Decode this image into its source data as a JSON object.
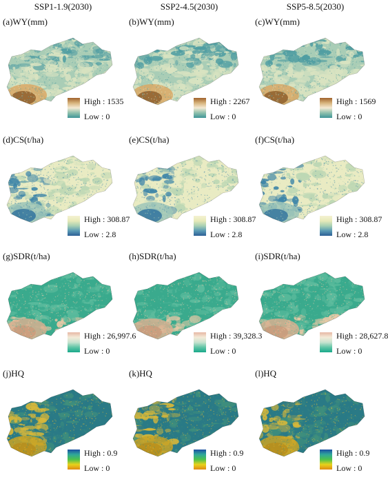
{
  "columns": [
    "SSP1-1.9(2030)",
    "SSP2-4.5(2030)",
    "SSP5-8.5(2030)"
  ],
  "rows": [
    {
      "indicator": "WY",
      "scheme": "wy",
      "panels": [
        {
          "label": "(a)WY(mm)",
          "high": "High : 1535",
          "low": "Low : 0"
        },
        {
          "label": "(b)WY(mm)",
          "high": "High : 2267",
          "low": "Low : 0"
        },
        {
          "label": "(c)WY(mm)",
          "high": "High : 1569",
          "low": "Low : 0"
        }
      ]
    },
    {
      "indicator": "CS",
      "scheme": "cs",
      "panels": [
        {
          "label": "(d)CS(t/ha)",
          "high": "High : 308.87",
          "low": "Low : 2.8"
        },
        {
          "label": "(e)CS(t/ha)",
          "high": "High : 308.87",
          "low": "Low : 2.8"
        },
        {
          "label": "(f)CS(t/ha)",
          "high": "High : 308.87",
          "low": "Low : 2.8"
        }
      ]
    },
    {
      "indicator": "SDR",
      "scheme": "sdr",
      "panels": [
        {
          "label": "(g)SDR(t/ha)",
          "high": "High : 26,997.6",
          "low": "Low : 0"
        },
        {
          "label": "(h)SDR(t/ha)",
          "high": "High : 39,328.3",
          "low": "Low : 0"
        },
        {
          "label": "(i)SDR(t/ha)",
          "high": "High : 28,627.8",
          "low": "Low : 0"
        }
      ]
    },
    {
      "indicator": "HQ",
      "scheme": "hq",
      "panels": [
        {
          "label": "(j)HQ",
          "high": "High : 0.9",
          "low": "Low : 0"
        },
        {
          "label": "(k)HQ",
          "high": "High : 0.9",
          "low": "Low : 0"
        },
        {
          "label": "(l)HQ",
          "high": "High : 0.9",
          "low": "Low : 0"
        }
      ]
    }
  ],
  "color_schemes": {
    "wy": {
      "base": "#a9cdb6",
      "band_a": "#d9e3c1",
      "band_b": "#4f9da2",
      "hot_mid": "#d9a865",
      "hot_dark": "#8a5a28",
      "ramp": [
        "#a0622c",
        "#d6b27a",
        "#f4ead3",
        "#8fc0ad",
        "#3e9597"
      ]
    },
    "cs": {
      "base": "#e9ebc3",
      "band_a": "#bcd7b4",
      "band_b": "#3f86a8",
      "hot_mid": "#9dc6b8",
      "hot_dark": "#2d6f9c",
      "ramp": [
        "#f4f2d2",
        "#e8eab9",
        "#a9d0b3",
        "#5a9bb5",
        "#2c5f96"
      ]
    },
    "sdr": {
      "base": "#3aaa8d",
      "band_a": "#5cbb9d",
      "band_b": "#e9c9a6",
      "hot_mid": "#d8b090",
      "hot_dark": "#c99a7a",
      "ramp": [
        "#e6b8a4",
        "#f4ead8",
        "#c8e3d0",
        "#5fc5a6",
        "#1aa88a"
      ]
    },
    "hq": {
      "base": "#2a7a86",
      "band_a": "#3f8f7c",
      "band_b": "#d6b73a",
      "hot_mid": "#c9a324",
      "hot_dark": "#b88d1c",
      "ramp": [
        "#1b4fa3",
        "#2fa79a",
        "#4dc24b",
        "#e8d21a",
        "#e08a14"
      ]
    }
  }
}
